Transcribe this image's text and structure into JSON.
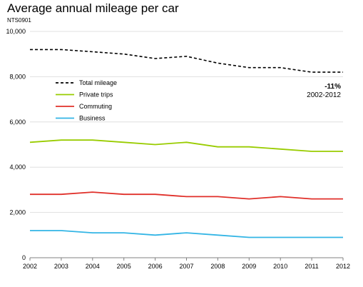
{
  "chart_data": {
    "type": "line",
    "title": "Average annual mileage per car",
    "subtitle": "NTS0901",
    "xlabel": "",
    "ylabel": "",
    "x": [
      "2002",
      "2003",
      "2004",
      "2005",
      "2006",
      "2007",
      "2008",
      "2009",
      "2010",
      "2011",
      "2012"
    ],
    "ylim": [
      0,
      10000
    ],
    "yticks": [
      "0",
      "2,000",
      "4,000",
      "6,000",
      "8,000",
      "10,000"
    ],
    "grid": "horizontal",
    "legend_position": "top-left",
    "series": [
      {
        "name": "Total mileage",
        "color": "#000000",
        "dash": true,
        "values": [
          9200,
          9200,
          9100,
          9000,
          8800,
          8900,
          8600,
          8400,
          8400,
          8200,
          8200
        ]
      },
      {
        "name": "Private trips",
        "color": "#99cc00",
        "dash": false,
        "values": [
          5100,
          5200,
          5200,
          5100,
          5000,
          5100,
          4900,
          4900,
          4800,
          4700,
          4700
        ]
      },
      {
        "name": "Commuting",
        "color": "#e0302a",
        "dash": false,
        "values": [
          2800,
          2800,
          2900,
          2800,
          2800,
          2700,
          2700,
          2600,
          2700,
          2600,
          2600
        ]
      },
      {
        "name": "Business",
        "color": "#33b5e5",
        "dash": false,
        "values": [
          1200,
          1200,
          1100,
          1100,
          1000,
          1100,
          1000,
          900,
          900,
          900,
          900
        ]
      }
    ],
    "annotations": [
      {
        "text": "-11%",
        "bold": true
      },
      {
        "text": "2002-2012",
        "bold": false
      }
    ]
  }
}
